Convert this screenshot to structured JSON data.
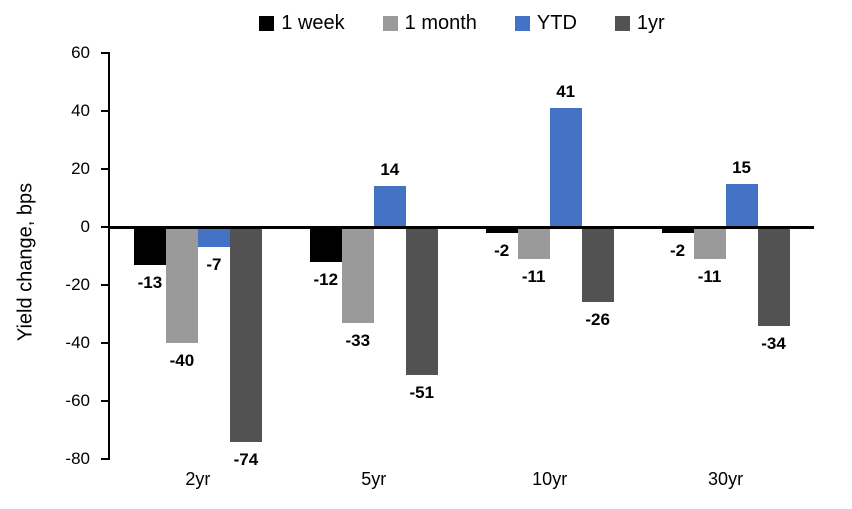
{
  "chart_data": {
    "type": "bar",
    "title": "",
    "ylabel": "Yield change, bps",
    "xlabel": "",
    "categories": [
      "2yr",
      "5yr",
      "10yr",
      "30yr"
    ],
    "series": [
      {
        "name": "1 week",
        "color": "#000000",
        "values": [
          -13,
          -12,
          -2,
          -2
        ]
      },
      {
        "name": "1 month",
        "color": "#9A9A9A",
        "values": [
          -40,
          -33,
          -11,
          -11
        ]
      },
      {
        "name": "YTD",
        "color": "#4472C4",
        "values": [
          -7,
          14,
          41,
          15
        ]
      },
      {
        "name": "1yr",
        "color": "#525252",
        "values": [
          -74,
          -51,
          -26,
          -34
        ]
      }
    ],
    "ylim": [
      -80,
      60
    ],
    "yticks": [
      60,
      40,
      20,
      0,
      -20,
      -40,
      -60,
      -80
    ],
    "grid": false,
    "legend_position": "top",
    "data_labels": true,
    "axis_color": "#000000"
  }
}
